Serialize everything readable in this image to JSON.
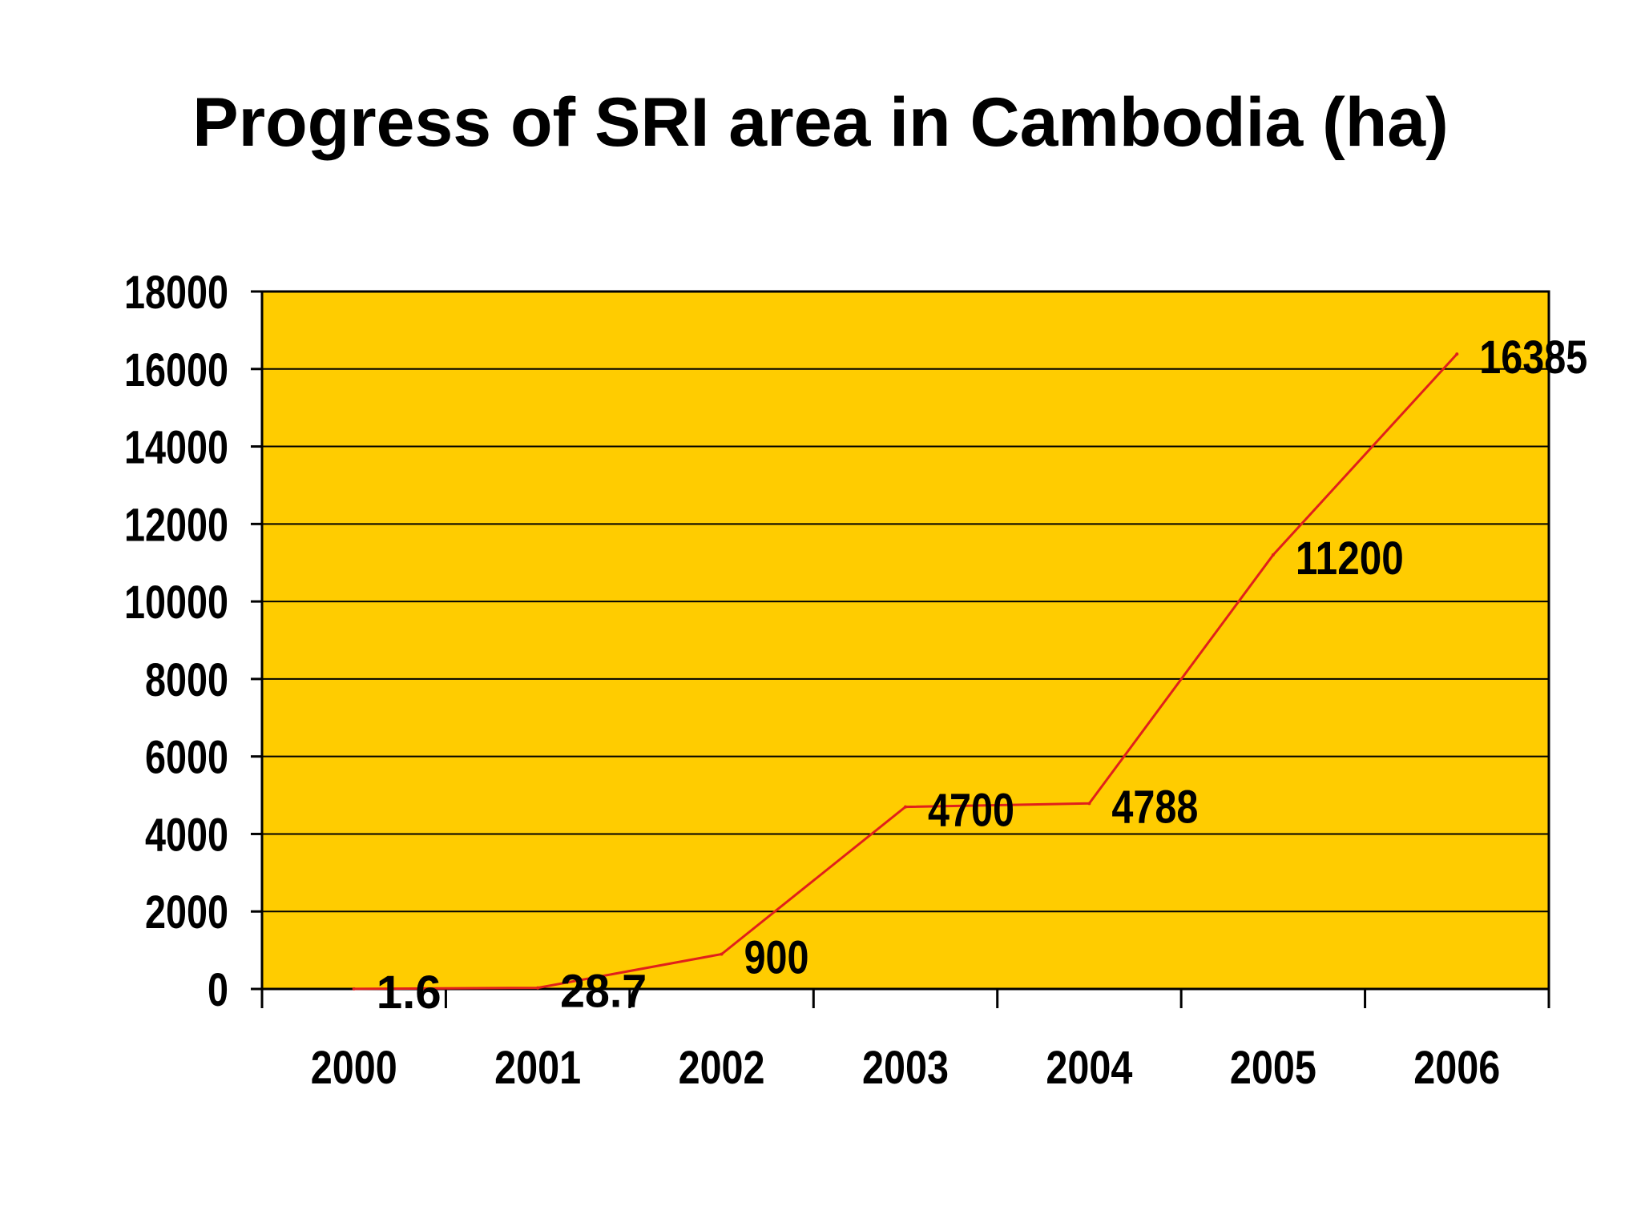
{
  "chart_data": {
    "type": "line",
    "title": "Progress of SRI area in Cambodia (ha)",
    "xlabel": "",
    "ylabel": "",
    "categories": [
      "2000",
      "2001",
      "2002",
      "2003",
      "2004",
      "2005",
      "2006"
    ],
    "series": [
      {
        "values": [
          1.6,
          28.7,
          900,
          4700,
          4788,
          11200,
          16385
        ],
        "labels": [
          "1.6",
          "28.7",
          "900",
          "4700",
          "4788",
          "11200",
          "16385"
        ]
      }
    ],
    "ylim": [
      0,
      18000
    ],
    "yticks": [
      "0",
      "2000",
      "4000",
      "6000",
      "8000",
      "10000",
      "12000",
      "14000",
      "16000",
      "18000"
    ],
    "grid": true,
    "legend": "none",
    "colors": {
      "plot_background": "#FFCC00",
      "line": "#E0201B",
      "gridline": "#000000",
      "text": "#000000"
    }
  }
}
